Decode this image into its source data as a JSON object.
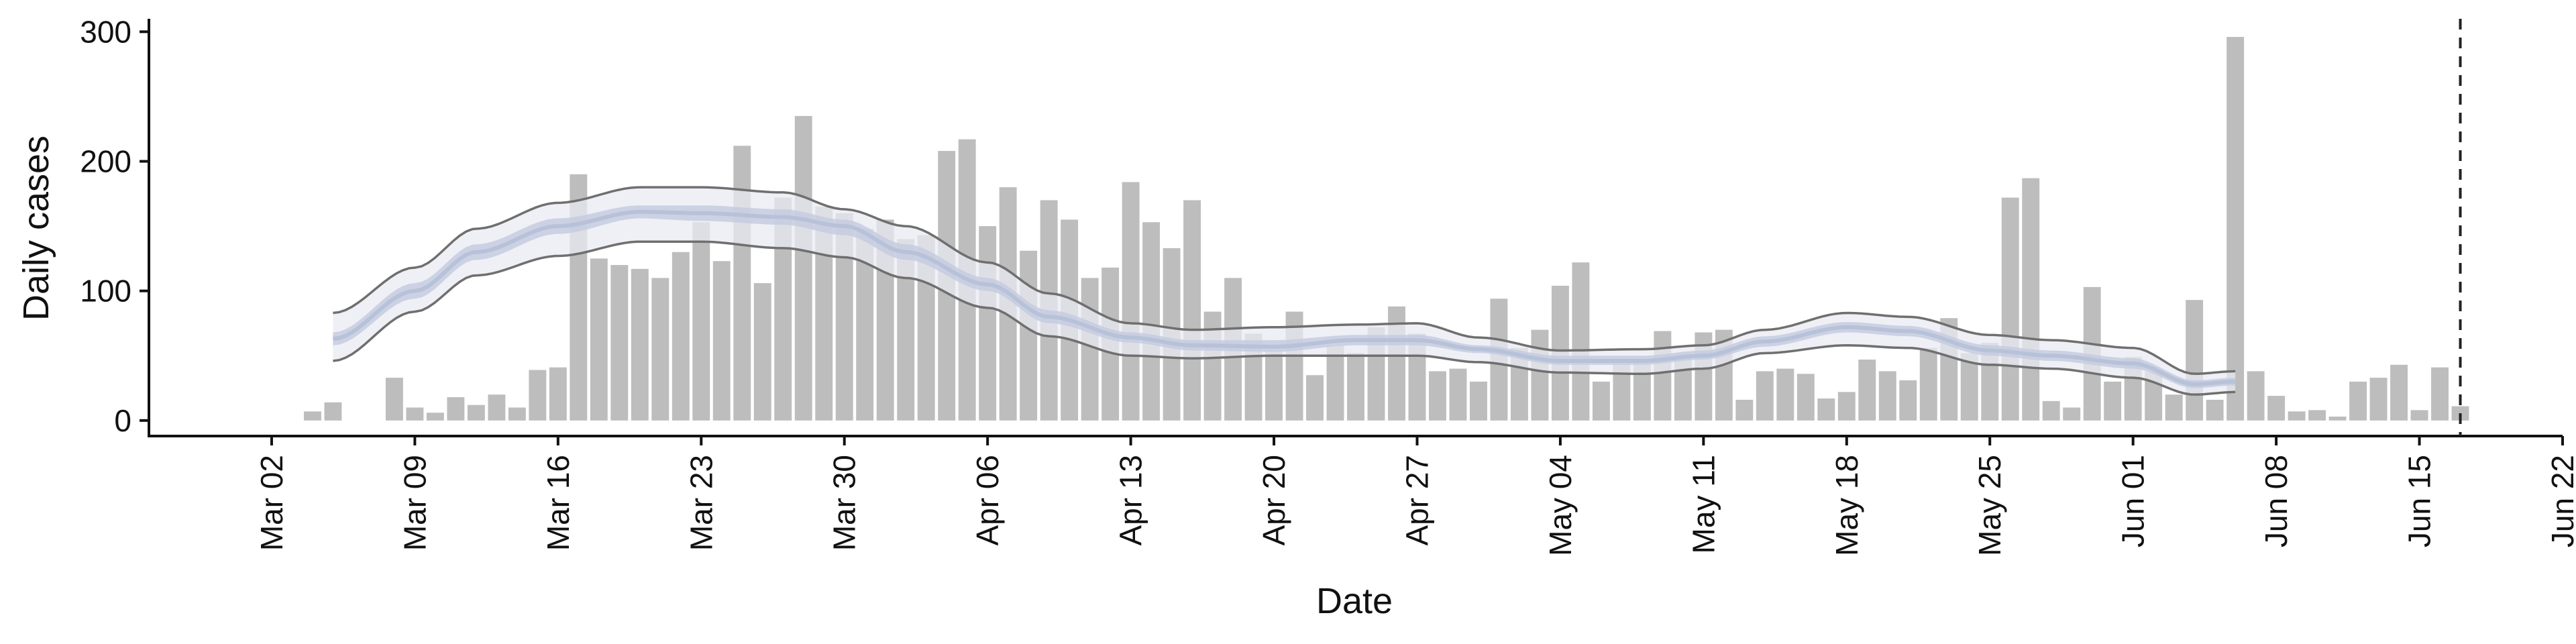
{
  "chart_data": {
    "type": "bar",
    "title": "",
    "xlabel": "Date",
    "ylabel": "Daily cases",
    "ylim": [
      -12,
      310
    ],
    "xlim": [
      "2020-02-25",
      "2020-06-22"
    ],
    "yticks": [
      0,
      100,
      200,
      300
    ],
    "xticks": [
      {
        "date": "2020-03-02",
        "label": "Mar 02"
      },
      {
        "date": "2020-03-09",
        "label": "Mar 09"
      },
      {
        "date": "2020-03-16",
        "label": "Mar 16"
      },
      {
        "date": "2020-03-23",
        "label": "Mar 23"
      },
      {
        "date": "2020-03-30",
        "label": "Mar 30"
      },
      {
        "date": "2020-04-06",
        "label": "Apr 06"
      },
      {
        "date": "2020-04-13",
        "label": "Apr 13"
      },
      {
        "date": "2020-04-20",
        "label": "Apr 20"
      },
      {
        "date": "2020-04-27",
        "label": "Apr 27"
      },
      {
        "date": "2020-05-04",
        "label": "May 04"
      },
      {
        "date": "2020-05-11",
        "label": "May 11"
      },
      {
        "date": "2020-05-18",
        "label": "May 18"
      },
      {
        "date": "2020-05-25",
        "label": "May 25"
      },
      {
        "date": "2020-06-01",
        "label": "Jun 01"
      },
      {
        "date": "2020-06-08",
        "label": "Jun 08"
      },
      {
        "date": "2020-06-15",
        "label": "Jun 15"
      },
      {
        "date": "2020-06-22",
        "label": "Jun 22"
      }
    ],
    "grid": false,
    "legend": "none",
    "colors": {
      "bars": "#bdbdbd",
      "band_outer": "#e9ebf3",
      "band_inner": "#c5cde0",
      "band_edge": "#6f6f6f",
      "median": "#b7c2d9",
      "vline": "#222222"
    },
    "vline_date": "2020-06-17",
    "bars": {
      "start_date": "2020-03-04",
      "values": [
        7,
        14,
        0,
        0,
        33,
        10,
        6,
        18,
        12,
        20,
        10,
        39,
        41,
        190,
        125,
        120,
        117,
        110,
        130,
        153,
        123,
        212,
        106,
        172,
        235,
        165,
        160,
        148,
        155,
        140,
        143,
        208,
        217,
        150,
        180,
        131,
        170,
        155,
        110,
        118,
        184,
        153,
        133,
        170,
        84,
        110,
        67,
        54,
        84,
        35,
        58,
        52,
        72,
        88,
        67,
        38,
        40,
        30,
        94,
        56,
        70,
        104,
        122,
        30,
        44,
        46,
        69,
        52,
        68,
        70,
        16,
        38,
        40,
        36,
        17,
        22,
        47,
        38,
        31,
        56,
        79,
        52,
        60,
        172,
        187,
        15,
        10,
        103,
        30,
        49,
        38,
        20,
        93,
        16,
        296,
        38,
        19,
        7,
        8,
        3,
        30,
        33,
        43,
        8,
        41,
        11
      ],
      "dates": [
        "Mar 04",
        "Mar 05",
        "Mar 06",
        "Mar 07",
        "Mar 08",
        "Mar 09",
        "Mar 10",
        "Mar 11",
        "Mar 12",
        "Mar 13",
        "Mar 14",
        "Mar 15",
        "Mar 16",
        "Mar 17",
        "Mar 18",
        "Mar 19",
        "Mar 20",
        "Mar 21",
        "Mar 22",
        "Mar 23",
        "Mar 24",
        "Mar 25",
        "Mar 26",
        "Mar 27",
        "Mar 28",
        "Mar 29",
        "Mar 30",
        "Mar 31",
        "Apr 01",
        "Apr 02",
        "Apr 03",
        "Apr 04",
        "Apr 05",
        "Apr 06",
        "Apr 07",
        "Apr 08",
        "Apr 09",
        "Apr 10",
        "Apr 11",
        "Apr 12",
        "Apr 13",
        "Apr 14",
        "Apr 15",
        "Apr 16",
        "Apr 17",
        "Apr 18",
        "Apr 19",
        "Apr 20",
        "Apr 21",
        "Apr 22",
        "Apr 23",
        "Apr 24",
        "Apr 25",
        "Apr 26",
        "Apr 27",
        "Apr 28",
        "Apr 29",
        "Apr 30",
        "May 01",
        "May 02",
        "May 03",
        "May 04",
        "May 05",
        "May 06",
        "May 07",
        "May 08",
        "May 09",
        "May 10",
        "May 11",
        "May 12",
        "May 13",
        "May 14",
        "May 15",
        "May 16",
        "May 17",
        "May 18",
        "May 19",
        "May 20",
        "May 21",
        "May 22",
        "May 23",
        "May 24",
        "May 25",
        "May 26",
        "May 27",
        "May 28",
        "May 29",
        "May 30",
        "May 31",
        "Jun 01",
        "Jun 02",
        "Jun 03",
        "Jun 04",
        "Jun 05",
        "Jun 06",
        "Jun 07",
        "Jun 08",
        "Jun 09",
        "Jun 10",
        "Jun 11",
        "Jun 12",
        "Jun 13",
        "Jun 14",
        "Jun 15",
        "Jun 16",
        "Jun 17"
      ]
    },
    "band": {
      "start_date": "2020-03-05",
      "end_date": "2020-06-06",
      "key_dates": [
        "2020-03-05",
        "2020-03-09",
        "2020-03-12",
        "2020-03-16",
        "2020-03-20",
        "2020-03-23",
        "2020-03-27",
        "2020-03-30",
        "2020-04-02",
        "2020-04-06",
        "2020-04-09",
        "2020-04-13",
        "2020-04-16",
        "2020-04-20",
        "2020-04-24",
        "2020-04-27",
        "2020-04-30",
        "2020-05-04",
        "2020-05-08",
        "2020-05-11",
        "2020-05-14",
        "2020-05-18",
        "2020-05-21",
        "2020-05-25",
        "2020-05-28",
        "2020-06-01",
        "2020-06-04",
        "2020-06-06"
      ],
      "upper": [
        83,
        118,
        148,
        168,
        180,
        180,
        176,
        163,
        150,
        122,
        98,
        75,
        70,
        72,
        74,
        75,
        64,
        54,
        55,
        58,
        70,
        83,
        80,
        66,
        62,
        56,
        36,
        38
      ],
      "median": [
        63,
        100,
        130,
        150,
        161,
        160,
        157,
        150,
        130,
        105,
        80,
        64,
        58,
        57,
        62,
        62,
        55,
        46,
        46,
        50,
        61,
        72,
        69,
        54,
        50,
        44,
        28,
        30
      ],
      "lower": [
        46,
        84,
        112,
        127,
        138,
        138,
        133,
        126,
        110,
        87,
        65,
        50,
        48,
        50,
        50,
        50,
        45,
        37,
        36,
        40,
        52,
        58,
        56,
        43,
        40,
        33,
        20,
        22
      ],
      "inner_upper": [
        68,
        106,
        136,
        156,
        166,
        166,
        163,
        155,
        136,
        110,
        85,
        68,
        62,
        62,
        66,
        66,
        58,
        50,
        50,
        54,
        65,
        76,
        73,
        58,
        54,
        48,
        31,
        33
      ],
      "inner_lower": [
        58,
        94,
        124,
        144,
        156,
        154,
        151,
        143,
        124,
        100,
        75,
        60,
        54,
        53,
        58,
        58,
        52,
        43,
        43,
        47,
        57,
        68,
        65,
        50,
        46,
        40,
        25,
        27
      ]
    }
  }
}
